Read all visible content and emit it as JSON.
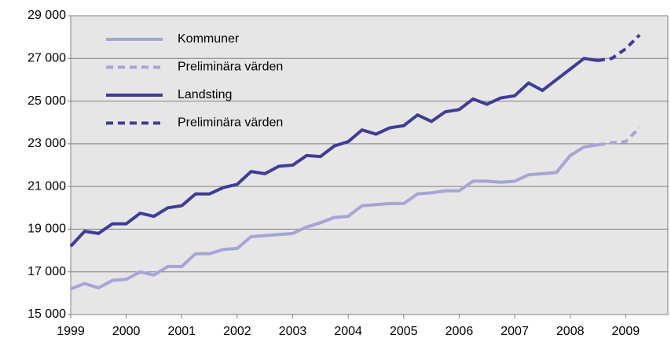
{
  "chart_data": {
    "type": "line",
    "x": [
      1999,
      1999.25,
      1999.5,
      1999.75,
      2000,
      2000.25,
      2000.5,
      2000.75,
      2001,
      2001.25,
      2001.5,
      2001.75,
      2002,
      2002.25,
      2002.5,
      2002.75,
      2003,
      2003.25,
      2003.5,
      2003.75,
      2004,
      2004.25,
      2004.5,
      2004.75,
      2005,
      2005.25,
      2005.5,
      2005.75,
      2006,
      2006.25,
      2006.5,
      2006.75,
      2007,
      2007.25,
      2007.5,
      2007.75,
      2008,
      2008.25,
      2008.5,
      2008.75,
      2009,
      2009.25
    ],
    "series": [
      {
        "name": "Kommuner",
        "color": "#a5a5d6",
        "dashed": false,
        "values": [
          16200,
          16450,
          16250,
          16600,
          16650,
          17000,
          16850,
          17250,
          17250,
          17850,
          17850,
          18050,
          18100,
          18650,
          18700,
          18750,
          18800,
          19100,
          19300,
          19550,
          19600,
          20100,
          20150,
          20200,
          20200,
          20650,
          20700,
          20800,
          20800,
          21250,
          21250,
          21200,
          21250,
          21550,
          21600,
          21650,
          22450,
          22850,
          22950,
          null,
          null,
          null
        ]
      },
      {
        "name": "Preliminära värden",
        "color": "#a5a5d6",
        "dashed": true,
        "values": [
          null,
          null,
          null,
          null,
          null,
          null,
          null,
          null,
          null,
          null,
          null,
          null,
          null,
          null,
          null,
          null,
          null,
          null,
          null,
          null,
          null,
          null,
          null,
          null,
          null,
          null,
          null,
          null,
          null,
          null,
          null,
          null,
          null,
          null,
          null,
          null,
          null,
          null,
          22950,
          23050,
          23100,
          23750
        ]
      },
      {
        "name": "Landsting",
        "color": "#3d3d99",
        "dashed": false,
        "values": [
          18200,
          18900,
          18800,
          19250,
          19250,
          19750,
          19600,
          20000,
          20100,
          20650,
          20650,
          20950,
          21100,
          21700,
          21600,
          21950,
          22000,
          22450,
          22400,
          22900,
          23100,
          23650,
          23450,
          23750,
          23850,
          24350,
          24050,
          24500,
          24600,
          25100,
          24850,
          25150,
          25250,
          25850,
          25500,
          26000,
          26500,
          27000,
          26900,
          null,
          null,
          null
        ]
      },
      {
        "name": "Preliminära värden",
        "color": "#3d3d99",
        "dashed": true,
        "values": [
          null,
          null,
          null,
          null,
          null,
          null,
          null,
          null,
          null,
          null,
          null,
          null,
          null,
          null,
          null,
          null,
          null,
          null,
          null,
          null,
          null,
          null,
          null,
          null,
          null,
          null,
          null,
          null,
          null,
          null,
          null,
          null,
          null,
          null,
          null,
          null,
          null,
          null,
          26900,
          27000,
          27450,
          28100
        ]
      }
    ],
    "xlim": [
      1999,
      2009.76
    ],
    "xticks": [
      1999,
      2000,
      2001,
      2002,
      2003,
      2004,
      2005,
      2006,
      2007,
      2008,
      2009
    ],
    "ylim": [
      15000,
      29000
    ],
    "yticks": [
      {
        "value": 15000,
        "label": "15 000"
      },
      {
        "value": 17000,
        "label": "17 000"
      },
      {
        "value": 19000,
        "label": "19 000"
      },
      {
        "value": 21000,
        "label": "21 000"
      },
      {
        "value": 23000,
        "label": "23 000"
      },
      {
        "value": 25000,
        "label": "25 000"
      },
      {
        "value": 27000,
        "label": "27 000"
      },
      {
        "value": 29000,
        "label": "29 000"
      }
    ],
    "grid": true
  }
}
